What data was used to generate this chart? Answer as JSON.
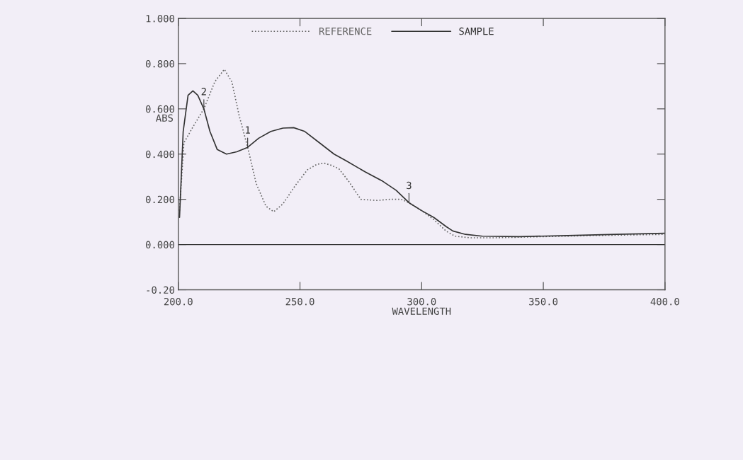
{
  "chart_data": {
    "type": "line",
    "xlabel": "WAVELENGTH",
    "ylabel": "ABS",
    "xlim": [
      200,
      400
    ],
    "xticks": [
      {
        "value": 200,
        "label": "200.0"
      },
      {
        "value": 250,
        "label": "250.0"
      },
      {
        "value": 300,
        "label": "300.0"
      },
      {
        "value": 350,
        "label": "350.0"
      },
      {
        "value": 400,
        "label": "400.0"
      }
    ],
    "ylim": [
      -0.2,
      1.0
    ],
    "yticks": [
      {
        "value": -0.2,
        "label": "-0.20"
      },
      {
        "value": 0,
        "label": "0.000"
      },
      {
        "value": 0.2,
        "label": "0.200"
      },
      {
        "value": 0.4,
        "label": "0.400"
      },
      {
        "value": 0.6,
        "label": "0.600"
      },
      {
        "value": 0.8,
        "label": "0.800"
      },
      {
        "value": 1.0,
        "label": "1.000"
      }
    ],
    "grid": false,
    "legend": "top",
    "marker": "none",
    "ref_lines": [
      {
        "axis": "y",
        "value": 0,
        "color": "#333333",
        "line_style": "solid"
      }
    ],
    "annotations": [
      {
        "text": "1",
        "x": 228.5,
        "y": 0.43
      },
      {
        "text": "2",
        "x": 210.5,
        "y": 0.6
      },
      {
        "text": "3",
        "x": 294.8,
        "y": 0.185
      }
    ],
    "series": [
      {
        "name": "REFERENCE",
        "color": "#666666",
        "line_style": "dotted",
        "x": [
          200.5,
          202.3,
          206,
          210.5,
          215,
          218.9,
          222,
          225,
          228.5,
          232,
          236,
          239.2,
          243,
          248,
          253,
          257,
          259.9,
          263,
          266,
          270,
          275,
          281.7,
          287,
          291.6,
          294.8,
          300,
          305,
          310,
          313.7,
          320,
          330,
          350,
          370,
          400
        ],
        "values": [
          0.15,
          0.45,
          0.52,
          0.6,
          0.72,
          0.775,
          0.72,
          0.57,
          0.43,
          0.27,
          0.17,
          0.145,
          0.18,
          0.26,
          0.33,
          0.355,
          0.36,
          0.35,
          0.335,
          0.28,
          0.2,
          0.195,
          0.2,
          0.2,
          0.185,
          0.15,
          0.11,
          0.06,
          0.037,
          0.03,
          0.03,
          0.035,
          0.04,
          0.045
        ]
      },
      {
        "name": "SAMPLE",
        "color": "#333333",
        "line_style": "solid",
        "x": [
          200.5,
          202,
          204,
          206,
          208,
          210.5,
          213,
          216,
          219.8,
          224,
          228.5,
          233,
          238,
          243,
          247.4,
          252,
          258,
          264,
          269,
          277,
          284,
          289.5,
          294.8,
          300,
          305,
          310,
          312.8,
          318,
          325,
          340,
          360,
          380,
          400
        ],
        "values": [
          0.12,
          0.5,
          0.66,
          0.68,
          0.66,
          0.6,
          0.5,
          0.42,
          0.4,
          0.41,
          0.43,
          0.47,
          0.5,
          0.515,
          0.517,
          0.5,
          0.45,
          0.4,
          0.37,
          0.32,
          0.28,
          0.24,
          0.185,
          0.15,
          0.12,
          0.08,
          0.06,
          0.045,
          0.037,
          0.035,
          0.04,
          0.045,
          0.05
        ]
      }
    ]
  }
}
